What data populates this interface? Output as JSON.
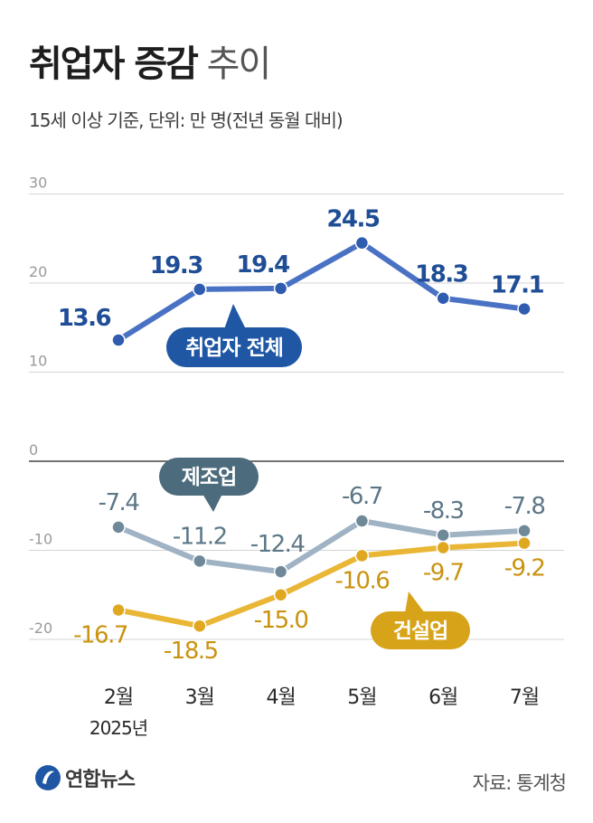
{
  "title_bold": "취업자 증감",
  "title_light": "추이",
  "subtitle": "15세 이상 기준, 단위: 만 명(전년 동월 대비)",
  "source": "자료: 통계청",
  "logo_text": "연합뉴스",
  "logo_icon": "yonhap-logo-icon",
  "colors": {
    "total": "#4a72c4",
    "total_badge": "#1f57a5",
    "manufacturing": "#9fb3c4",
    "manufacturing_badge": "#4c6b7c",
    "construction": "#e9b635",
    "construction_badge": "#d7a318",
    "total_text": "#1f4e96",
    "manufacturing_text": "#5d7787",
    "construction_text": "#c9930e"
  },
  "chart_data": {
    "type": "line",
    "categories": [
      "2월",
      "3월",
      "4월",
      "5월",
      "6월",
      "7월"
    ],
    "year_label": "2025년",
    "ylim": [
      -20,
      30
    ],
    "yticks": [
      "30",
      "20",
      "10",
      "0",
      "-10",
      "-20"
    ],
    "grid": true,
    "series": [
      {
        "name": "취업자 전체",
        "values": [
          13.6,
          19.3,
          19.4,
          24.5,
          18.3,
          17.1
        ],
        "labels": [
          "13.6",
          "19.3",
          "19.4",
          "24.5",
          "18.3",
          "17.1"
        ]
      },
      {
        "name": "제조업",
        "values": [
          -7.4,
          -11.2,
          -12.4,
          -6.7,
          -8.3,
          -7.8
        ],
        "labels": [
          "-7.4",
          "-11.2",
          "-12.4",
          "-6.7",
          "-8.3",
          "-7.8"
        ]
      },
      {
        "name": "건설업",
        "values": [
          -16.7,
          -18.5,
          -15.0,
          -10.6,
          -9.7,
          -9.2
        ],
        "labels": [
          "-16.7",
          "-18.5",
          "-15.0",
          "-10.6",
          "-9.7",
          "-9.2"
        ]
      }
    ]
  }
}
